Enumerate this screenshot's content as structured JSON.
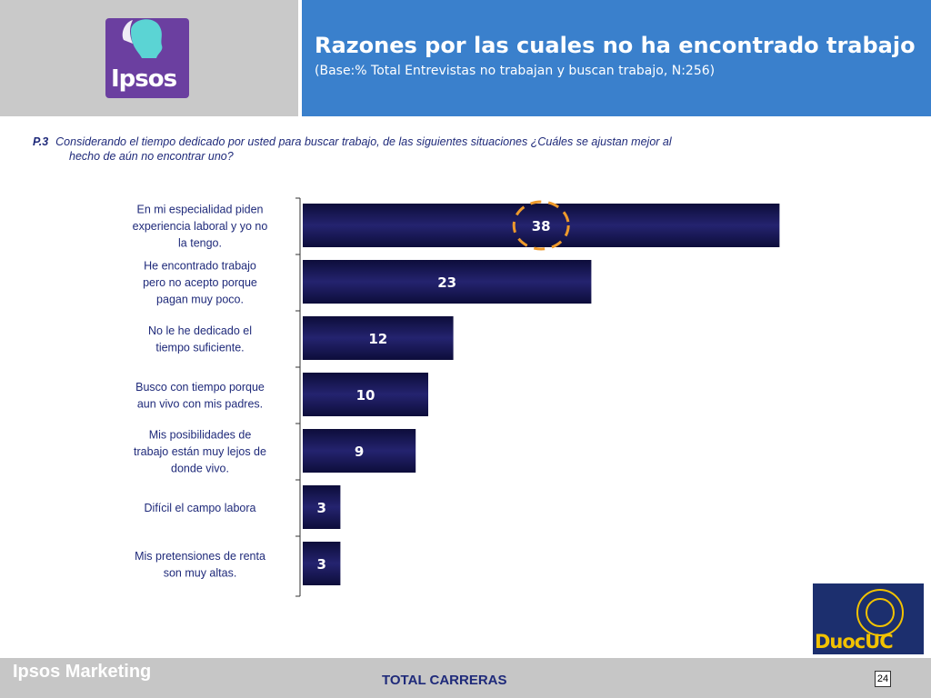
{
  "header": {
    "logo_text": "Ipsos",
    "title": "Razones por las cuales no ha encontrado trabajo",
    "subtitle": "(Base:% Total Entrevistas no trabajan y buscan trabajo, N:256)"
  },
  "question": {
    "number": "P.3",
    "line1": "Considerando el tiempo dedicado por usted  para buscar trabajo, de las siguientes situaciones ¿Cuáles se ajustan mejor al",
    "line2": "hecho de aún no encontrar uno?"
  },
  "chart_data": {
    "type": "bar",
    "orientation": "horizontal",
    "categories": [
      [
        "En mi especialidad piden",
        "experiencia laboral y yo no",
        "la tengo."
      ],
      [
        "He encontrado trabajo",
        "pero no acepto porque",
        "pagan muy poco."
      ],
      [
        "No le he dedicado el",
        "tiempo suficiente."
      ],
      [
        "Busco con tiempo porque",
        "aun vivo con mis padres."
      ],
      [
        "Mis posibilidades de",
        "trabajo están muy lejos de",
        "donde vivo."
      ],
      [
        "Difícil el campo labora"
      ],
      [
        "Mis pretensiones de renta",
        "son muy altas."
      ]
    ],
    "values": [
      38,
      23,
      12,
      10,
      9,
      3,
      3
    ],
    "bar_color": "#24236f",
    "highlight": {
      "index": 0,
      "color": "#ee9a2c"
    },
    "xlim": [
      0,
      40
    ],
    "grid": false
  },
  "footer": {
    "brand": "Ipsos Marketing",
    "center": "TOTAL CARRERAS",
    "page": "24"
  },
  "duoc_logo": {
    "text": "DuocUC"
  },
  "colors": {
    "header_blue": "#3a80cc",
    "left_gray": "#c9c9c9",
    "ipsos_purple": "#6b3fa0",
    "text_navy": "#1f2a7a",
    "footer_gray": "#c6c6c6",
    "duoc_navy": "#1c2f6e",
    "duoc_gold": "#f2c200"
  }
}
